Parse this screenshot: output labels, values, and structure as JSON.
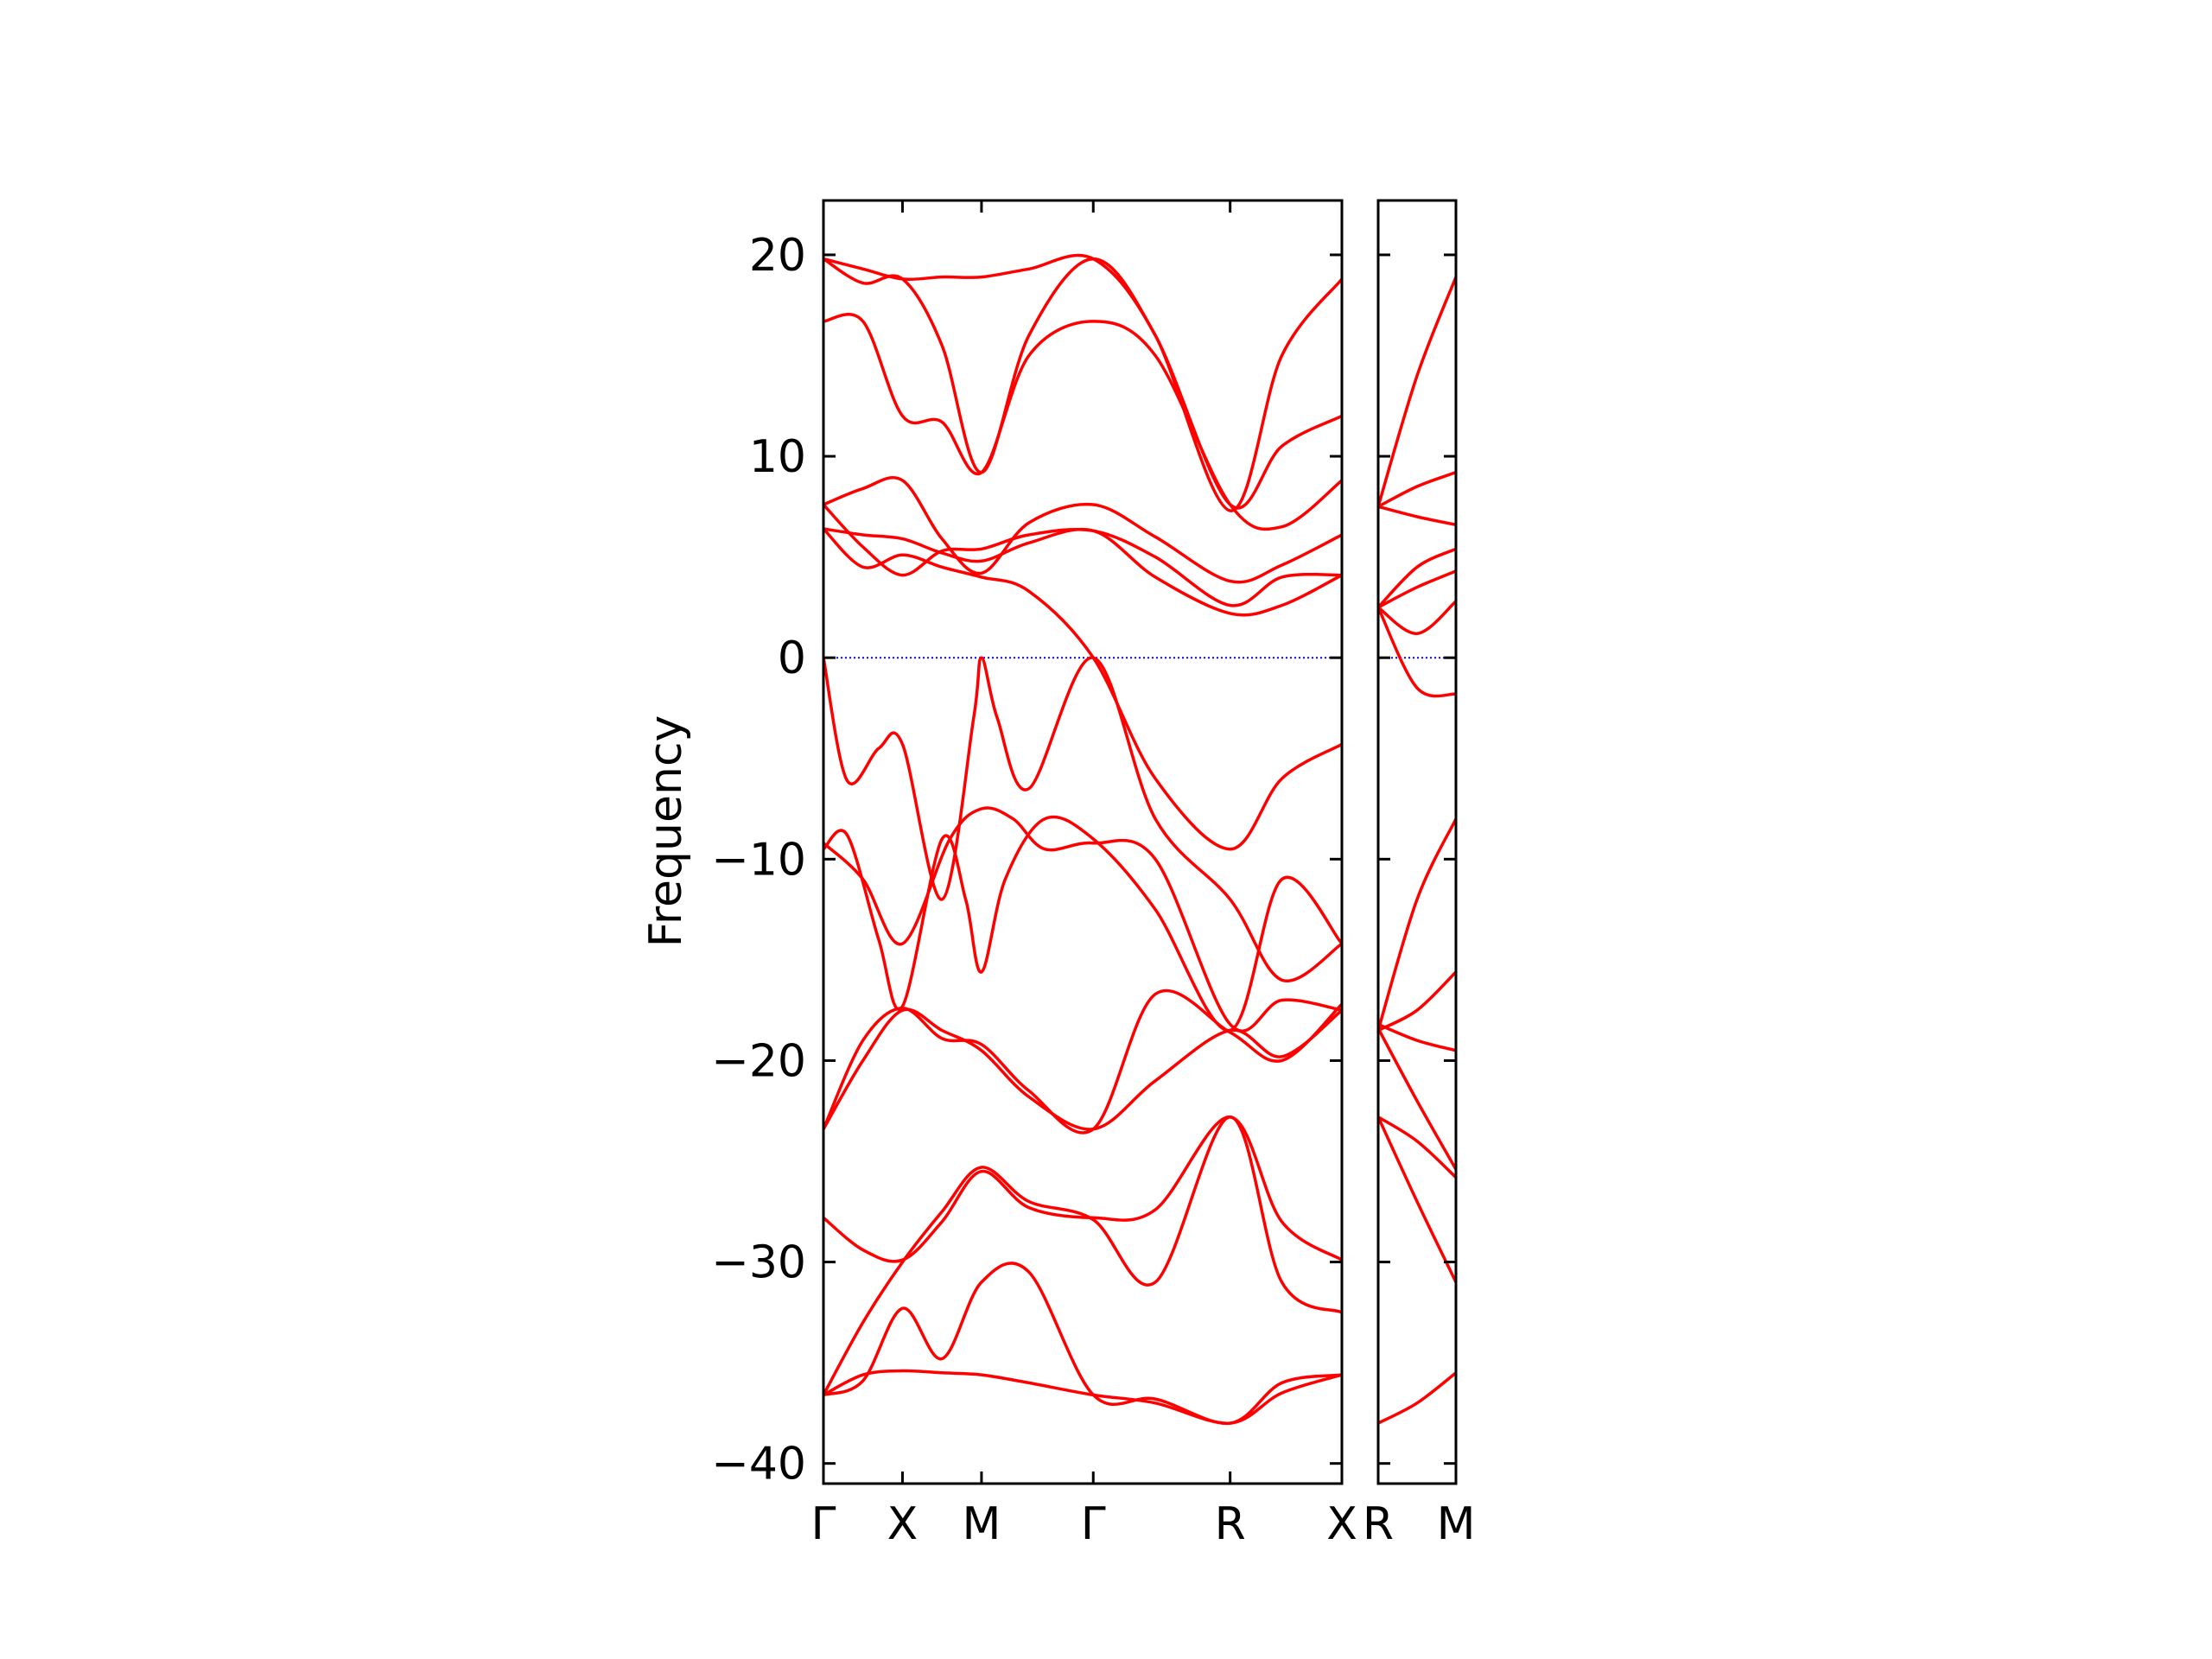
{
  "chart_data": {
    "type": "line",
    "ylabel": "Frequency",
    "ylim": [
      -41,
      22.7
    ],
    "yticks": [
      20,
      10,
      0,
      -10,
      -20,
      -30,
      -40
    ],
    "ytick_labels": [
      "20",
      "10",
      "0",
      "−10",
      "−20",
      "−30",
      "−40"
    ],
    "colors": {
      "bands": "#ff0000",
      "zero_line": "#0000ff",
      "axes": "#000000"
    },
    "zero_line": {
      "y": 0,
      "style": "dotted"
    },
    "panels": [
      {
        "name": "main",
        "x_labels": [
          "Γ",
          "X",
          "M",
          "Γ",
          "R",
          "X"
        ],
        "x_positions": [
          0,
          1,
          2,
          3.414,
          5.146,
          6.56
        ],
        "xlim": [
          0,
          6.56
        ],
        "bands": [
          {
            "x": [
              0,
              0.5,
              1,
              1.5,
              2,
              2.6,
              3.414,
              4.2,
              5.146,
              5.8,
              6.56
            ],
            "y": [
              19.8,
              19.3,
              18.8,
              18.9,
              18.9,
              19.3,
              19.8,
              16,
              7.3,
              15,
              18.8
            ]
          },
          {
            "x": [
              0,
              0.5,
              1,
              1.5,
              2,
              2.6,
              3.414,
              4.2,
              5.146,
              5.8,
              6.56
            ],
            "y": [
              19.8,
              18.6,
              18.8,
              15.5,
              9.2,
              16,
              19.8,
              16,
              7.6,
              10.5,
              12
            ]
          },
          {
            "x": [
              0,
              0.5,
              1,
              1.5,
              2,
              2.6,
              3.414,
              4.2,
              5.146,
              5.8,
              6.56
            ],
            "y": [
              16.7,
              16.7,
              12,
              11.7,
              9.2,
              15,
              16.7,
              15,
              7.6,
              6.5,
              8.8
            ]
          },
          {
            "x": [
              0,
              0.5,
              1,
              1.5,
              2,
              2.6,
              3.414,
              4.2,
              5.146,
              5.8,
              6.56
            ],
            "y": [
              7.6,
              8.4,
              8.8,
              5.9,
              4.2,
              6.7,
              7.6,
              6,
              3.8,
              4.6,
              6.1
            ]
          },
          {
            "x": [
              0,
              0.5,
              1,
              1.5,
              2,
              2.6,
              3.414,
              4.2,
              5.146,
              5.8,
              6.56
            ],
            "y": [
              7.6,
              5.5,
              4.1,
              5.3,
              5.4,
              6.1,
              6.3,
              5,
              2.6,
              4,
              4.1
            ]
          },
          {
            "x": [
              0,
              0.5,
              1,
              1.5,
              2,
              2.6,
              3.414,
              4.2,
              5.146,
              5.8,
              6.56
            ],
            "y": [
              6.4,
              6.1,
              5.9,
              5.2,
              4.8,
              5.7,
              6.3,
              4,
              2.2,
              2.6,
              4.1
            ]
          },
          {
            "x": [
              0,
              0.5,
              1,
              1.5,
              2,
              2.6,
              3.414,
              4.2,
              5.146,
              5.8,
              6.56
            ],
            "y": [
              6.4,
              4.5,
              5.1,
              4.5,
              4.0,
              3.3,
              0,
              -6,
              -9.5,
              -6,
              -4.3
            ]
          },
          {
            "x": [
              0,
              0.3,
              0.7,
              1,
              1.5,
              1.9,
              2,
              2.2,
              2.6,
              3.414,
              4.2,
              5.146,
              5.8,
              6.56
            ],
            "y": [
              0,
              -6.1,
              -4.5,
              -4.3,
              -12,
              -3,
              0,
              -3,
              -6.5,
              0,
              -8,
              -12,
              -16,
              -14.2
            ]
          },
          {
            "x": [
              0,
              0.5,
              1,
              1.6,
              2,
              2.4,
              2.8,
              3.414,
              4.2,
              5.146,
              5.8,
              6.56
            ],
            "y": [
              -9.2,
              -11,
              -14.2,
              -9,
              -7.5,
              -8,
              -9.5,
              -9.2,
              -10,
              -18.2,
              -17,
              -17.5
            ]
          },
          {
            "x": [
              0,
              0.3,
              0.7,
              1,
              1.5,
              1.8,
              2,
              2.3,
              2.8,
              3.414,
              4.2,
              5.146,
              5.8,
              6.56
            ],
            "y": [
              -9.5,
              -8.8,
              -14,
              -17.3,
              -9,
              -12,
              -15.6,
              -11,
              -8,
              -9,
              -12.5,
              -18.5,
              -11,
              -14.2
            ]
          },
          {
            "x": [
              0,
              0.5,
              1,
              1.5,
              2,
              2.6,
              3.414,
              4.2,
              5.146,
              5.8,
              6.56
            ],
            "y": [
              -23.4,
              -20,
              -17.5,
              -18.5,
              -19.5,
              -21.8,
              -23.4,
              -21,
              -18.5,
              -19.8,
              -17.5
            ]
          },
          {
            "x": [
              0,
              0.5,
              1,
              1.5,
              2,
              2.6,
              3.414,
              4.2,
              5.146,
              5.8,
              6.56
            ],
            "y": [
              -23.4,
              -19,
              -17.4,
              -18.9,
              -19.2,
              -21.5,
              -23.4,
              -16.7,
              -18.6,
              -20,
              -17.2
            ]
          },
          {
            "x": [
              0,
              0.5,
              1,
              1.5,
              2,
              2.6,
              3.414,
              4.2,
              5.146,
              5.8,
              6.56
            ],
            "y": [
              -27.8,
              -29.4,
              -29.9,
              -28,
              -25.5,
              -27.3,
              -27.8,
              -27.4,
              -22.8,
              -28,
              -29.9
            ]
          },
          {
            "x": [
              0,
              0.5,
              1,
              1.5,
              2,
              2.6,
              3.414,
              4.2,
              5.146,
              5.8,
              6.56
            ],
            "y": [
              -36.6,
              -33,
              -30,
              -27.5,
              -25.3,
              -27,
              -27.9,
              -31,
              -22.8,
              -31,
              -32.5
            ]
          },
          {
            "x": [
              0,
              0.5,
              1,
              1.5,
              2,
              2.6,
              3.414,
              4.2,
              5.146,
              5.8,
              6.56
            ],
            "y": [
              -36.6,
              -35.9,
              -32.3,
              -34.8,
              -31,
              -30.5,
              -36.6,
              -36.8,
              -38,
              -36,
              -35.6
            ]
          },
          {
            "x": [
              0,
              0.5,
              1,
              1.5,
              2,
              2.6,
              3.414,
              4.2,
              5.146,
              5.8,
              6.56
            ],
            "y": [
              -36.6,
              -35.6,
              -35.4,
              -35.5,
              -35.6,
              -36,
              -36.6,
              -37,
              -38,
              -36.5,
              -35.6
            ]
          }
        ]
      },
      {
        "name": "side",
        "x_labels": [
          "R",
          "M"
        ],
        "x_positions": [
          0,
          1
        ],
        "xlim": [
          0,
          1
        ],
        "bands": [
          {
            "x": [
              0,
              0.5,
              1
            ],
            "y": [
              7.5,
              14,
              18.9
            ]
          },
          {
            "x": [
              0,
              0.5,
              1
            ],
            "y": [
              7.5,
              8.5,
              9.2
            ]
          },
          {
            "x": [
              0,
              0.5,
              1
            ],
            "y": [
              7.5,
              7,
              6.6
            ]
          },
          {
            "x": [
              0,
              0.5,
              1
            ],
            "y": [
              2.5,
              4.5,
              5.4
            ]
          },
          {
            "x": [
              0,
              0.5,
              1
            ],
            "y": [
              2.5,
              3.5,
              4.3
            ]
          },
          {
            "x": [
              0,
              0.5,
              1
            ],
            "y": [
              2.5,
              1.2,
              2.8
            ]
          },
          {
            "x": [
              0,
              0.5,
              1
            ],
            "y": [
              2.5,
              -1.5,
              -1.8
            ]
          },
          {
            "x": [
              0,
              0.5,
              1
            ],
            "y": [
              -18.5,
              -12,
              -8
            ]
          },
          {
            "x": [
              0,
              0.5,
              1
            ],
            "y": [
              -18.5,
              -17.5,
              -15.6
            ]
          },
          {
            "x": [
              0,
              0.5,
              1
            ],
            "y": [
              -18.2,
              -19,
              -19.5
            ]
          },
          {
            "x": [
              0,
              0.5,
              1
            ],
            "y": [
              -18.4,
              -22,
              -25.4
            ]
          },
          {
            "x": [
              0,
              0.5,
              1
            ],
            "y": [
              -22.8,
              -24,
              -25.8
            ]
          },
          {
            "x": [
              0,
              0.5,
              1
            ],
            "y": [
              -22.8,
              -27,
              -31
            ]
          },
          {
            "x": [
              0,
              0.5,
              1
            ],
            "y": [
              -38,
              -37,
              -35.5
            ]
          }
        ]
      }
    ]
  }
}
